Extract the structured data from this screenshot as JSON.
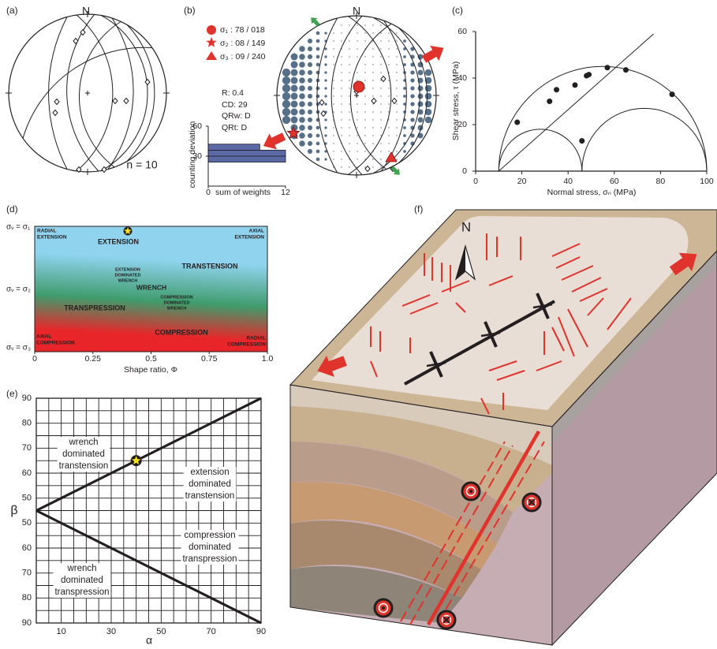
{
  "panel_labels": [
    "(a)",
    "(b)",
    "(c)",
    "(d)",
    "(e)",
    "(f)"
  ],
  "stereonet_a": {
    "north": "N",
    "note": "n = 10"
  },
  "stereonet_b": {
    "north": "N",
    "legend": [
      "σ₁ : 78 / 018",
      "σ₂ : 08 / 149",
      "σ₃ : 09 / 240"
    ],
    "stats": [
      "R: 0.4",
      "CD: 29",
      "QRw: D",
      "QRt: D"
    ]
  },
  "block": {
    "north": "N"
  },
  "chart_data": [
    {
      "type": "histogram",
      "xlabel": "sum of weights",
      "ylabel": "counting deviation",
      "bins": [
        24,
        30,
        36,
        42
      ],
      "values": [
        12,
        12,
        8
      ],
      "color": "#5b6aa6",
      "xlim": [
        0,
        12
      ],
      "xticks": [
        0,
        12
      ],
      "ylim": [
        0,
        60
      ],
      "yticks": [
        30,
        60
      ]
    },
    {
      "type": "scatter",
      "xlabel": "Normal stress, σₙ (MPa)",
      "ylabel": "Shear stress, τ (MPa)",
      "x": [
        18,
        32,
        35,
        43,
        48,
        49,
        57,
        65,
        85,
        46
      ],
      "y": [
        21,
        30,
        35,
        37,
        41,
        41.5,
        44.5,
        43.5,
        33,
        13
      ],
      "color": "#231f20",
      "xlim": [
        0,
        100
      ],
      "xticks": [
        0,
        20,
        40,
        60,
        80,
        100
      ],
      "ylim": [
        0,
        60
      ],
      "yticks": [
        0,
        20,
        40,
        60
      ],
      "circles": [
        [
          10,
          100
        ],
        [
          10,
          46
        ],
        [
          46,
          100
        ]
      ],
      "envelope": {
        "x": [
          10,
          77
        ],
        "y": [
          0,
          59
        ]
      }
    },
    {
      "type": "regime",
      "xlabel": "Shape ratio, Φ",
      "xlim": [
        0,
        1
      ],
      "xticks": [
        0,
        0.25,
        0.5,
        0.75,
        {
          "value": 1,
          "label": "1.0"
        }
      ],
      "y_labels": [
        "σᵥ = σ₁",
        "σᵥ = σ₂",
        "σᵥ = σ₃"
      ],
      "regions": [
        [
          "RADIAL",
          "EXTENSION"
        ],
        [
          "EXTENSION"
        ],
        [
          "AXIAL",
          "EXTENSION"
        ],
        [
          "TRANSTENSION"
        ],
        [
          "EXTENSION",
          "DOMINATED",
          "WRENCH"
        ],
        [
          "WRENCH"
        ],
        [
          "COMPRESSION",
          "DOMINATED",
          "WRENCH"
        ],
        [
          "TRANSPRESSION"
        ],
        [
          "COMPRESSION"
        ],
        [
          "AXIAL",
          "COMPRESSION"
        ],
        [
          "RADIAL",
          "COMPRESSION"
        ]
      ],
      "marker_x": 0.4,
      "colors": [
        "#8fd3ef",
        "#3f9c6c",
        "#e8262a"
      ]
    },
    {
      "type": "line",
      "xlabel": "α",
      "ylabel": "β",
      "xlim": [
        0,
        90
      ],
      "xticks": [
        10,
        30,
        50,
        70,
        90
      ],
      "ylim": [
        0,
        90
      ],
      "yticks": [
        90,
        80,
        70,
        60,
        50,
        {
          "value": 40,
          "label": "50"
        },
        {
          "value": 30,
          "label": "60"
        },
        {
          "value": 20,
          "label": "70"
        },
        {
          "value": 10,
          "label": "80"
        },
        {
          "value": 0,
          "label": "90"
        }
      ],
      "xgrid": [
        0,
        5,
        10,
        15,
        20,
        25,
        30,
        35,
        40,
        45,
        50,
        55,
        60,
        65,
        70,
        75,
        80,
        85,
        90
      ],
      "ygrid": [
        0,
        5,
        10,
        15,
        20,
        25,
        30,
        35,
        40,
        45,
        50,
        55,
        60,
        65,
        70,
        75,
        80,
        85,
        90
      ],
      "series": [
        {
          "color": "#231f20",
          "x": [
            0,
            90
          ],
          "y": [
            45,
            90
          ]
        },
        {
          "color": "#231f20",
          "x": [
            0,
            90
          ],
          "y": [
            45,
            0
          ]
        }
      ],
      "regions": [
        [
          "wrench",
          "dominated",
          "transtension"
        ],
        [
          "extension",
          "dominated",
          "transtension"
        ],
        [
          "compression",
          "dominated",
          "transpression"
        ],
        [
          "wrench",
          "dominated",
          "transpression"
        ]
      ],
      "marker": {
        "x": 40,
        "y": 65
      }
    }
  ]
}
